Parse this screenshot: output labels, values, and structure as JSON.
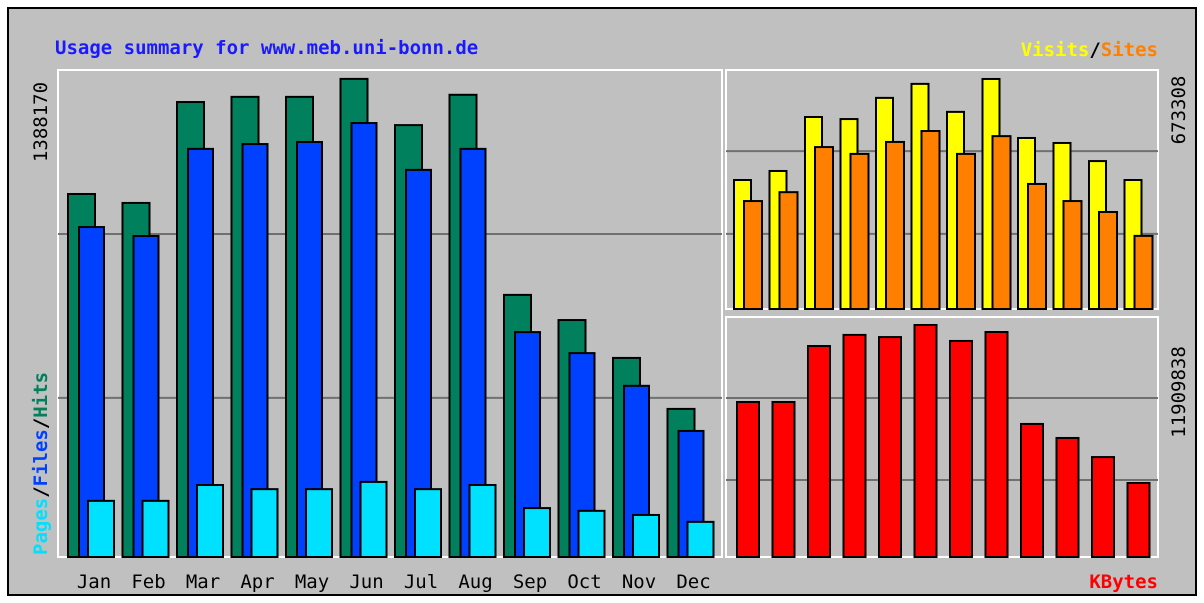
{
  "chart_data": [
    {
      "type": "bar",
      "title": "Usage summary for www.meb.uni-bonn.de",
      "categories": [
        "Jan",
        "Feb",
        "Mar",
        "Apr",
        "May",
        "Jun",
        "Jul",
        "Aug",
        "Sep",
        "Oct",
        "Nov",
        "Dec"
      ],
      "ylabel": 1388170,
      "legend_separator": "/",
      "ylim": [
        0,
        1414000
      ],
      "gridlines": [
        462000,
        938000
      ],
      "series": [
        {
          "name": "Hits",
          "color": "#00805c",
          "values": [
            1054000,
            1028000,
            1321000,
            1336000,
            1336000,
            1388170,
            1254000,
            1342000,
            761000,
            688000,
            578000,
            430000
          ]
        },
        {
          "name": "Files",
          "color": "#0040ff",
          "values": [
            958000,
            932000,
            1185000,
            1199000,
            1205000,
            1260000,
            1124000,
            1185000,
            653000,
            592000,
            497000,
            366000
          ]
        },
        {
          "name": "Pages",
          "color": "#00e0ff",
          "values": [
            163000,
            163000,
            209000,
            197000,
            197000,
            218000,
            197000,
            209000,
            142000,
            134000,
            122000,
            102000
          ]
        }
      ]
    },
    {
      "type": "bar",
      "ylabel": 673308,
      "legend_separator": "/",
      "ylim": [
        0,
        699600
      ],
      "gridlines": [
        220000,
        462000
      ],
      "series": [
        {
          "name": "Visits",
          "color": "#ffff00",
          "values": [
            377600,
            404000,
            562000,
            556000,
            618000,
            659000,
            577000,
            673308,
            500600,
            486000,
            433000,
            377600
          ]
        },
        {
          "name": "Sites",
          "color": "#ff8000",
          "values": [
            316000,
            342000,
            474000,
            454000,
            489000,
            521000,
            454000,
            506000,
            366000,
            316000,
            284000,
            214000
          ]
        }
      ]
    },
    {
      "type": "bar",
      "ylabel": 11909838,
      "ylim": [
        0,
        12320000
      ],
      "gridlines": [
        3950000,
        8160000
      ],
      "series": [
        {
          "name": "KBytes",
          "color": "#ff0000",
          "values": [
            7957000,
            7957000,
            10830000,
            11400000,
            11290000,
            11909838,
            11090000,
            11550000,
            6830000,
            6110000,
            5130000,
            3800000
          ]
        }
      ]
    }
  ]
}
